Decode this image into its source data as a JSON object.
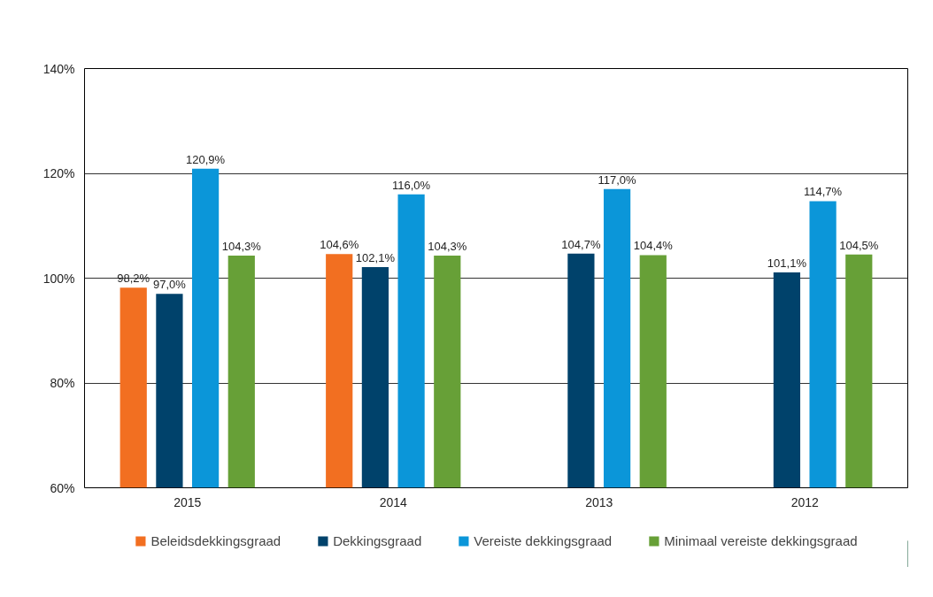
{
  "chart_data": {
    "type": "bar",
    "categories": [
      "2015",
      "2014",
      "2013",
      "2012"
    ],
    "series": [
      {
        "name": "Beleidsdekkingsgraad",
        "color": "#f26f21",
        "values": [
          98.2,
          104.6,
          null,
          null
        ],
        "value_labels": [
          "98,2%",
          "104,6%",
          null,
          null
        ]
      },
      {
        "name": "Dekkingsgraad",
        "color": "#00426b",
        "values": [
          97.0,
          102.1,
          104.7,
          101.1
        ],
        "value_labels": [
          "97,0%",
          "102,1%",
          "104,7%",
          "101,1%"
        ]
      },
      {
        "name": "Vereiste dekkingsgraad",
        "color": "#0b96d9",
        "values": [
          120.9,
          116.0,
          117.0,
          114.7
        ],
        "value_labels": [
          "120,9%",
          "116,0%",
          "117,0%",
          "114,7%"
        ]
      },
      {
        "name": "Minimaal vereiste dekkingsgraad",
        "color": "#67a037",
        "values": [
          104.3,
          104.3,
          104.4,
          104.5
        ],
        "value_labels": [
          "104,3%",
          "104,3%",
          "104,4%",
          "104,5%"
        ]
      }
    ],
    "ylim": [
      60,
      140
    ],
    "yticks": [
      {
        "value": 60,
        "label": "60%"
      },
      {
        "value": 80,
        "label": "80%"
      },
      {
        "value": 100,
        "label": "100%"
      },
      {
        "value": 120,
        "label": "120%"
      },
      {
        "value": 140,
        "label": "140%"
      }
    ],
    "grid": "y",
    "legend": "bottom"
  }
}
